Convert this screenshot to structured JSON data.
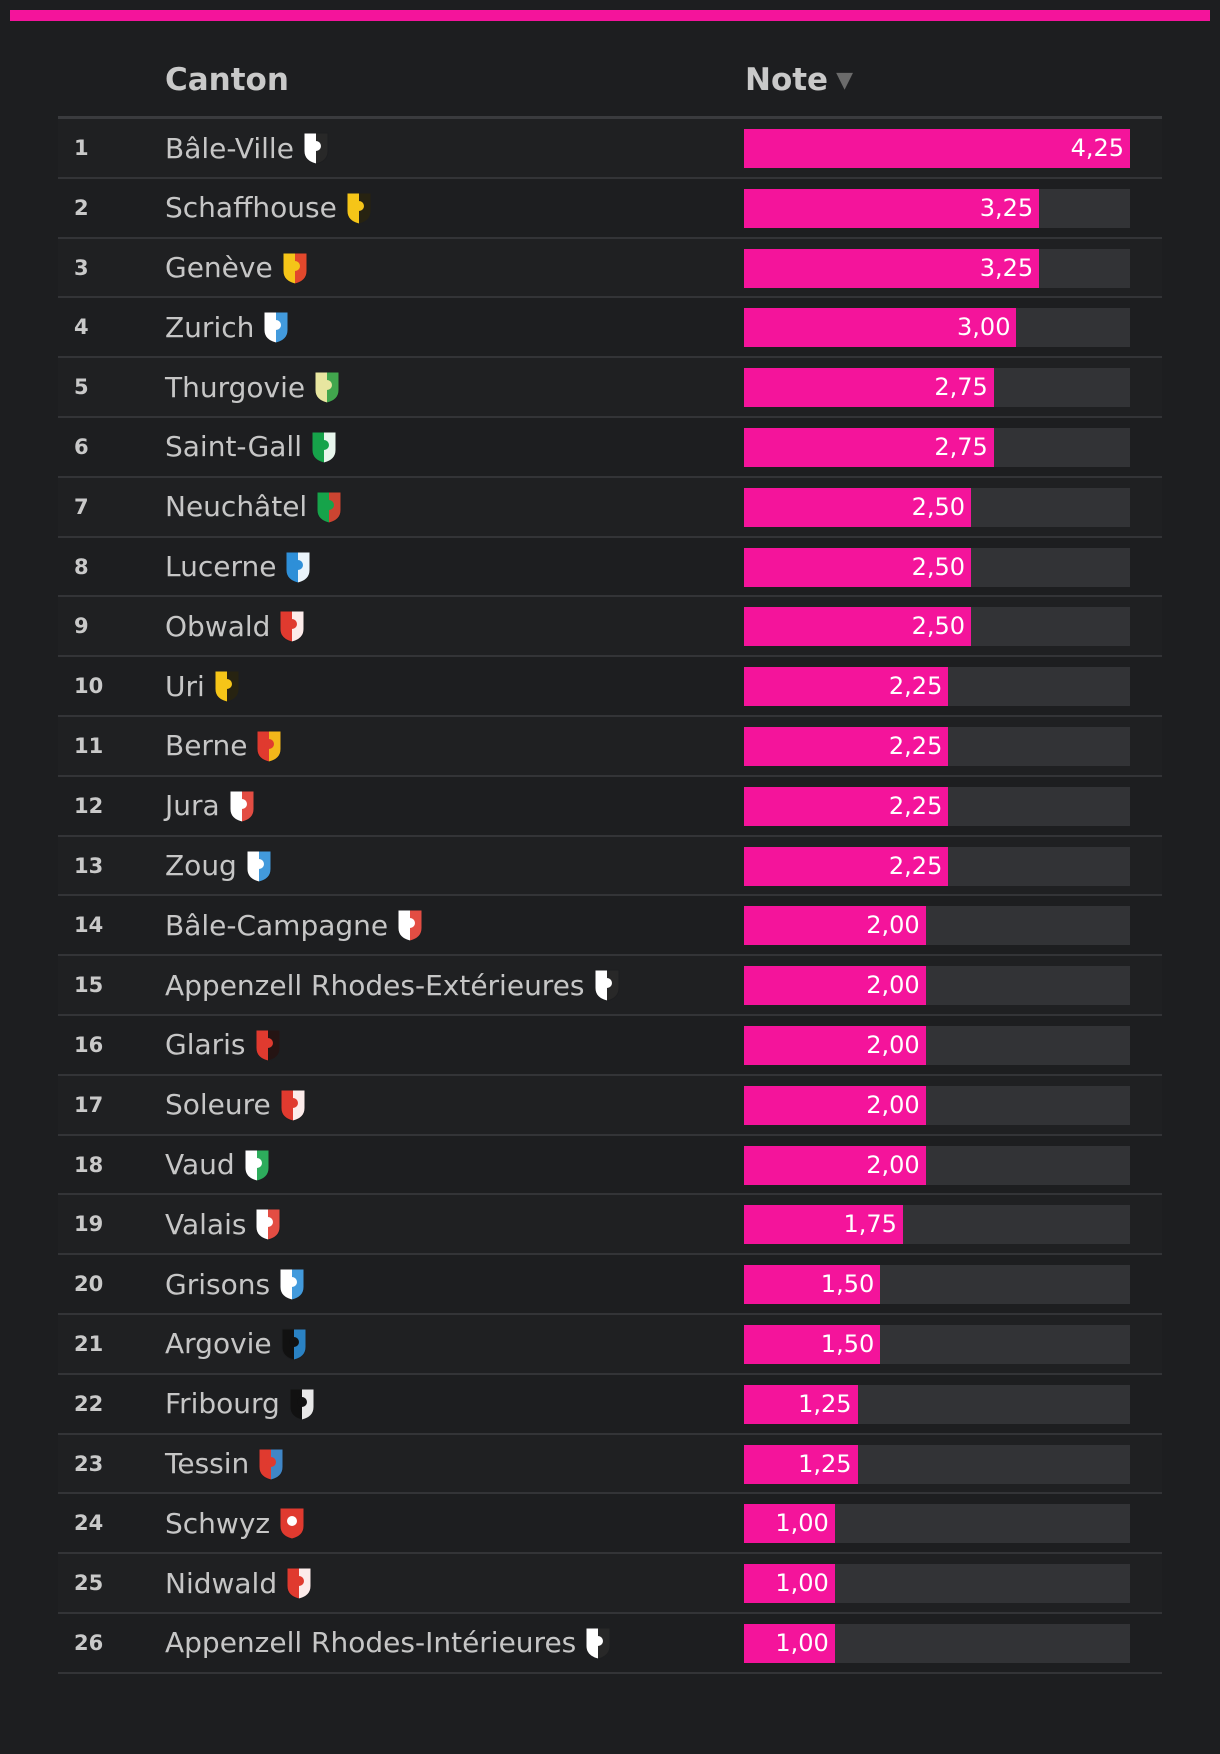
{
  "header": {
    "canton_label": "Canton",
    "note_label": "Note",
    "sort_glyph": "▼"
  },
  "colors": {
    "accent": "#f4149b",
    "track": "#323336",
    "background": "#1d1e20"
  },
  "chart_data": {
    "type": "bar",
    "title": "",
    "xlabel": "",
    "ylabel": "",
    "xlim": [
      0,
      4.25
    ],
    "categories": [
      "Bâle-Ville",
      "Schaffhouse",
      "Genève",
      "Zurich",
      "Thurgovie",
      "Saint-Gall",
      "Neuchâtel",
      "Lucerne",
      "Obwald",
      "Uri",
      "Berne",
      "Jura",
      "Zoug",
      "Bâle-Campagne",
      "Appenzell Rhodes-Extérieures",
      "Glaris",
      "Soleure",
      "Vaud",
      "Valais",
      "Grisons",
      "Argovie",
      "Fribourg",
      "Tessin",
      "Schwyz",
      "Nidwald",
      "Appenzell Rhodes-Intérieures"
    ],
    "values": [
      4.25,
      3.25,
      3.25,
      3.0,
      2.75,
      2.75,
      2.5,
      2.5,
      2.5,
      2.25,
      2.25,
      2.25,
      2.25,
      2.0,
      2.0,
      2.0,
      2.0,
      2.0,
      1.75,
      1.5,
      1.5,
      1.25,
      1.25,
      1.0,
      1.0,
      1.0
    ]
  },
  "rows": [
    {
      "rank": "1",
      "name": "Bâle-Ville",
      "value": "4,25",
      "crest": "basel-city-crest-icon",
      "colors": [
        "#ffffff",
        "#111111"
      ]
    },
    {
      "rank": "2",
      "name": "Schaffhouse",
      "value": "3,25",
      "crest": "schaffhausen-crest-icon",
      "colors": [
        "#f5c518",
        "#111111"
      ]
    },
    {
      "rank": "3",
      "name": "Genève",
      "value": "3,25",
      "crest": "geneva-crest-icon",
      "colors": [
        "#f5c518",
        "#e03a2f"
      ]
    },
    {
      "rank": "4",
      "name": "Zurich",
      "value": "3,00",
      "crest": "zurich-crest-icon",
      "colors": [
        "#ffffff",
        "#2e8fd8"
      ]
    },
    {
      "rank": "5",
      "name": "Thurgovie",
      "value": "2,75",
      "crest": "thurgau-crest-icon",
      "colors": [
        "#e8e6a0",
        "#2f9e44"
      ]
    },
    {
      "rank": "6",
      "name": "Saint-Gall",
      "value": "2,75",
      "crest": "st-gallen-crest-icon",
      "colors": [
        "#16a34a",
        "#ffffff"
      ]
    },
    {
      "rank": "7",
      "name": "Neuchâtel",
      "value": "2,50",
      "crest": "neuchatel-crest-icon",
      "colors": [
        "#16a34a",
        "#e03a2f"
      ]
    },
    {
      "rank": "8",
      "name": "Lucerne",
      "value": "2,50",
      "crest": "lucerne-crest-icon",
      "colors": [
        "#2e8fd8",
        "#ffffff"
      ]
    },
    {
      "rank": "9",
      "name": "Obwald",
      "value": "2,50",
      "crest": "obwalden-crest-icon",
      "colors": [
        "#e03a2f",
        "#ffffff"
      ]
    },
    {
      "rank": "10",
      "name": "Uri",
      "value": "2,25",
      "crest": "uri-crest-icon",
      "colors": [
        "#f5c518",
        "#111111"
      ]
    },
    {
      "rank": "11",
      "name": "Berne",
      "value": "2,25",
      "crest": "bern-crest-icon",
      "colors": [
        "#e03a2f",
        "#f5c518"
      ]
    },
    {
      "rank": "12",
      "name": "Jura",
      "value": "2,25",
      "crest": "jura-crest-icon",
      "colors": [
        "#ffffff",
        "#e03a2f"
      ]
    },
    {
      "rank": "13",
      "name": "Zoug",
      "value": "2,25",
      "crest": "zug-crest-icon",
      "colors": [
        "#ffffff",
        "#2e8fd8"
      ]
    },
    {
      "rank": "14",
      "name": "Bâle-Campagne",
      "value": "2,00",
      "crest": "basel-country-crest-icon",
      "colors": [
        "#ffffff",
        "#e03a2f"
      ]
    },
    {
      "rank": "15",
      "name": "Appenzell Rhodes-Extérieures",
      "value": "2,00",
      "crest": "appenzell-outer-crest-icon",
      "colors": [
        "#ffffff",
        "#111111"
      ]
    },
    {
      "rank": "16",
      "name": "Glaris",
      "value": "2,00",
      "crest": "glarus-crest-icon",
      "colors": [
        "#e03a2f",
        "#111111"
      ]
    },
    {
      "rank": "17",
      "name": "Soleure",
      "value": "2,00",
      "crest": "solothurn-crest-icon",
      "colors": [
        "#e03a2f",
        "#ffffff"
      ]
    },
    {
      "rank": "18",
      "name": "Vaud",
      "value": "2,00",
      "crest": "vaud-crest-icon",
      "colors": [
        "#ffffff",
        "#16a34a"
      ]
    },
    {
      "rank": "19",
      "name": "Valais",
      "value": "1,75",
      "crest": "valais-crest-icon",
      "colors": [
        "#ffffff",
        "#e03a2f"
      ]
    },
    {
      "rank": "20",
      "name": "Grisons",
      "value": "1,50",
      "crest": "graubunden-crest-icon",
      "colors": [
        "#ffffff",
        "#2e8fd8"
      ]
    },
    {
      "rank": "21",
      "name": "Argovie",
      "value": "1,50",
      "crest": "aargau-crest-icon",
      "colors": [
        "#111111",
        "#2e8fd8"
      ]
    },
    {
      "rank": "22",
      "name": "Fribourg",
      "value": "1,25",
      "crest": "fribourg-crest-icon",
      "colors": [
        "#111111",
        "#ffffff"
      ]
    },
    {
      "rank": "23",
      "name": "Tessin",
      "value": "1,25",
      "crest": "ticino-crest-icon",
      "colors": [
        "#e03a2f",
        "#2e8fd8"
      ]
    },
    {
      "rank": "24",
      "name": "Schwyz",
      "value": "1,00",
      "crest": "schwyz-crest-icon",
      "colors": [
        "#e03a2f",
        "#e03a2f"
      ]
    },
    {
      "rank": "25",
      "name": "Nidwald",
      "value": "1,00",
      "crest": "nidwalden-crest-icon",
      "colors": [
        "#e03a2f",
        "#ffffff"
      ]
    },
    {
      "rank": "26",
      "name": "Appenzell Rhodes-Intérieures",
      "value": "1,00",
      "crest": "appenzell-inner-crest-icon",
      "colors": [
        "#ffffff",
        "#111111"
      ]
    }
  ]
}
